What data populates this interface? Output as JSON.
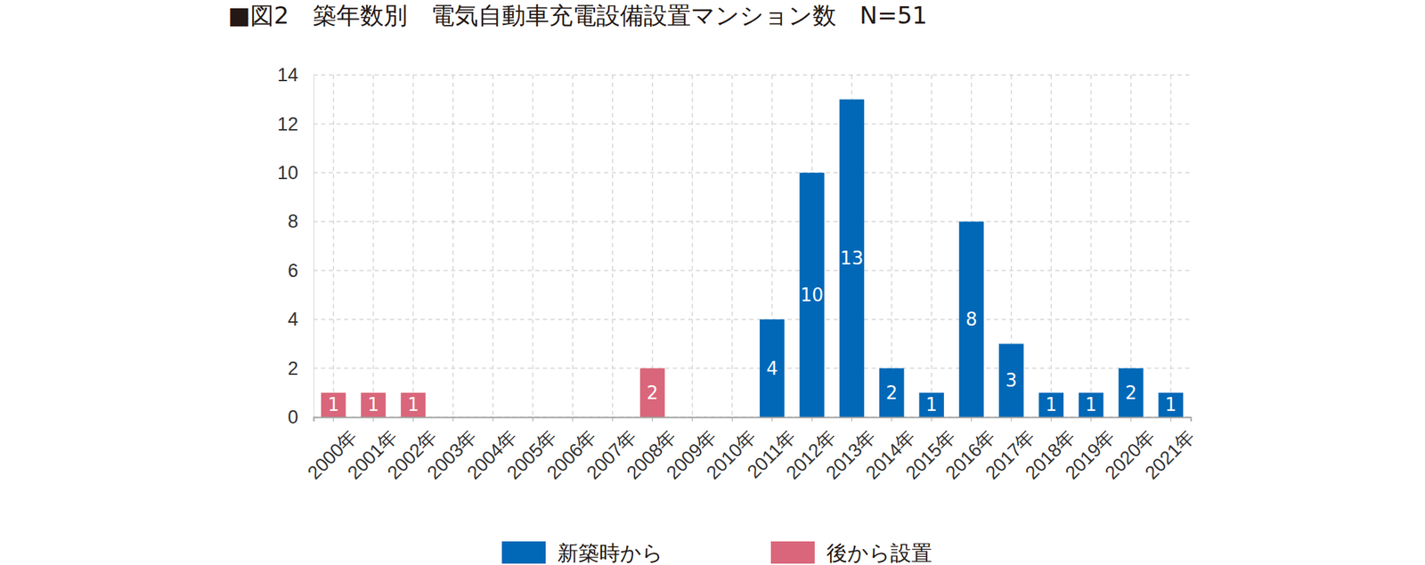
{
  "chart_data": {
    "type": "bar",
    "title": "■図2　築年数別　電気自動車充電設備設置マンション数　N=51",
    "categories": [
      "2000年",
      "2001年",
      "2002年",
      "2003年",
      "2004年",
      "2005年",
      "2006年",
      "2007年",
      "2008年",
      "2009年",
      "2010年",
      "2011年",
      "2012年",
      "2013年",
      "2014年",
      "2015年",
      "2016年",
      "2017年",
      "2018年",
      "2019年",
      "2020年",
      "2021年"
    ],
    "series": [
      {
        "name": "新築時から",
        "color": "#0068b7",
        "values": [
          null,
          null,
          null,
          null,
          null,
          null,
          null,
          null,
          null,
          null,
          null,
          4,
          10,
          13,
          2,
          1,
          8,
          3,
          1,
          1,
          2,
          1
        ]
      },
      {
        "name": "後から設置",
        "color": "#d9667a",
        "values": [
          1,
          1,
          1,
          null,
          null,
          null,
          null,
          null,
          2,
          null,
          null,
          null,
          null,
          null,
          null,
          null,
          null,
          null,
          null,
          null,
          null,
          null
        ]
      }
    ],
    "stacked": true,
    "ylim": [
      0,
      14
    ],
    "yticks": [
      0,
      2,
      4,
      6,
      8,
      10,
      12,
      14
    ],
    "grid": true,
    "data_labels": true,
    "legend": "bottom"
  }
}
